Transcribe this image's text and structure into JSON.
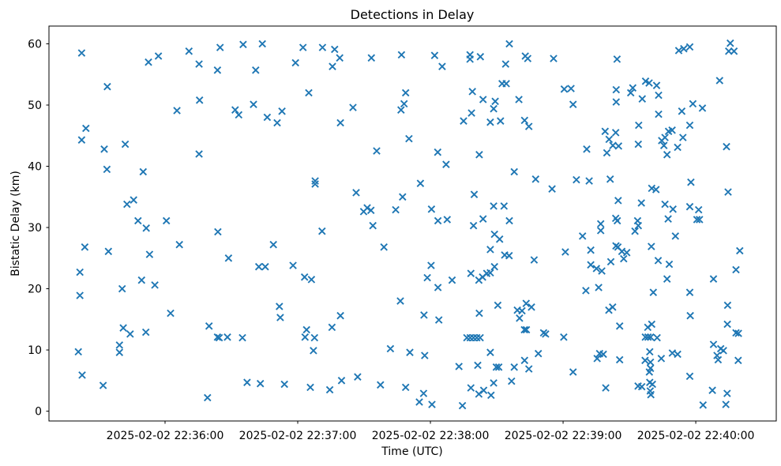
{
  "chart_data": {
    "type": "scatter",
    "title": "Detections in Delay",
    "xlabel": "Time (UTC)",
    "ylabel": "Bistatic Delay (km)",
    "marker": "x",
    "marker_color": "#1f77b4",
    "axis_color": "#000000",
    "background_color": "#ffffff",
    "grid": false,
    "legend": null,
    "x_unit": "seconds after 2025-02-02 22:35:00 UTC",
    "xlim": [
      7.5,
      336.4
    ],
    "ylim": [
      -1.6,
      62.9
    ],
    "x_ticks": [
      {
        "t": 60,
        "label": "2025-02-02 22:36:00"
      },
      {
        "t": 120,
        "label": "2025-02-02 22:37:00"
      },
      {
        "t": 180,
        "label": "2025-02-02 22:38:00"
      },
      {
        "t": 240,
        "label": "2025-02-02 22:39:00"
      },
      {
        "t": 300,
        "label": "2025-02-02 22:40:00"
      }
    ],
    "y_ticks": [
      0,
      10,
      20,
      30,
      40,
      50,
      60
    ],
    "points": [
      [
        22.3,
        58.5
      ],
      [
        52.5,
        57.0
      ],
      [
        57.0,
        58.0
      ],
      [
        70.8,
        58.8
      ],
      [
        84.9,
        59.4
      ],
      [
        75.4,
        56.7
      ],
      [
        83.7,
        55.7
      ],
      [
        33.9,
        53.0
      ],
      [
        75.6,
        50.8
      ],
      [
        65.4,
        49.1
      ],
      [
        24.2,
        46.2
      ],
      [
        22.3,
        44.3
      ],
      [
        42.0,
        43.6
      ],
      [
        32.5,
        42.8
      ],
      [
        75.4,
        42.0
      ],
      [
        95.3,
        59.9
      ],
      [
        104.0,
        60.0
      ],
      [
        122.4,
        59.4
      ],
      [
        131.2,
        59.4
      ],
      [
        136.7,
        59.1
      ],
      [
        139.0,
        57.7
      ],
      [
        153.3,
        57.7
      ],
      [
        166.9,
        58.2
      ],
      [
        119.0,
        56.9
      ],
      [
        135.7,
        56.3
      ],
      [
        101.0,
        55.7
      ],
      [
        125.0,
        52.0
      ],
      [
        100.0,
        50.1
      ],
      [
        91.7,
        49.2
      ],
      [
        93.3,
        48.4
      ],
      [
        112.9,
        49.0
      ],
      [
        106.2,
        48.0
      ],
      [
        110.7,
        47.1
      ],
      [
        145.0,
        49.6
      ],
      [
        139.3,
        47.1
      ],
      [
        168.8,
        52.0
      ],
      [
        168.1,
        50.2
      ],
      [
        166.7,
        49.2
      ],
      [
        170.3,
        44.5
      ],
      [
        155.7,
        42.5
      ],
      [
        215.7,
        60.0
      ],
      [
        181.9,
        58.1
      ],
      [
        197.9,
        58.2
      ],
      [
        197.9,
        57.5
      ],
      [
        202.6,
        57.9
      ],
      [
        222.9,
        58.0
      ],
      [
        224.0,
        57.6
      ],
      [
        235.7,
        57.6
      ],
      [
        185.3,
        56.3
      ],
      [
        214.0,
        56.7
      ],
      [
        212.4,
        53.5
      ],
      [
        214.3,
        53.5
      ],
      [
        199.0,
        52.2
      ],
      [
        240.5,
        52.6
      ],
      [
        243.6,
        52.7
      ],
      [
        203.8,
        50.9
      ],
      [
        209.3,
        50.6
      ],
      [
        220.0,
        50.9
      ],
      [
        244.5,
        50.1
      ],
      [
        208.6,
        49.4
      ],
      [
        198.6,
        48.7
      ],
      [
        195.0,
        47.4
      ],
      [
        207.1,
        47.2
      ],
      [
        211.7,
        47.4
      ],
      [
        222.6,
        47.5
      ],
      [
        224.5,
        46.5
      ],
      [
        183.3,
        42.3
      ],
      [
        202.1,
        41.9
      ],
      [
        250.7,
        42.8
      ],
      [
        292.3,
        58.9
      ],
      [
        294.6,
        59.2
      ],
      [
        297.3,
        59.5
      ],
      [
        315.6,
        60.1
      ],
      [
        314.9,
        58.8
      ],
      [
        317.3,
        58.8
      ],
      [
        264.4,
        57.5
      ],
      [
        310.8,
        54.0
      ],
      [
        277.3,
        53.9
      ],
      [
        278.9,
        53.6
      ],
      [
        282.3,
        53.2
      ],
      [
        271.5,
        52.8
      ],
      [
        270.6,
        52.0
      ],
      [
        264.0,
        52.5
      ],
      [
        264.0,
        50.5
      ],
      [
        275.8,
        51.0
      ],
      [
        283.2,
        51.6
      ],
      [
        298.7,
        50.2
      ],
      [
        293.7,
        49.0
      ],
      [
        303.0,
        49.5
      ],
      [
        283.2,
        48.5
      ],
      [
        274.2,
        46.7
      ],
      [
        297.3,
        46.7
      ],
      [
        259.0,
        45.7
      ],
      [
        263.8,
        45.5
      ],
      [
        260.8,
        44.4
      ],
      [
        262.5,
        43.4
      ],
      [
        265.1,
        43.3
      ],
      [
        259.8,
        42.2
      ],
      [
        274.0,
        43.6
      ],
      [
        287.7,
        45.7
      ],
      [
        289.3,
        45.9
      ],
      [
        286.1,
        44.7
      ],
      [
        284.6,
        44.2
      ],
      [
        285.6,
        43.4
      ],
      [
        294.2,
        44.7
      ],
      [
        291.8,
        43.1
      ],
      [
        313.9,
        43.2
      ],
      [
        287.0,
        41.9
      ],
      [
        33.7,
        39.5
      ],
      [
        50.1,
        39.1
      ],
      [
        45.8,
        34.5
      ],
      [
        42.8,
        33.8
      ],
      [
        47.8,
        31.1
      ],
      [
        51.5,
        29.9
      ],
      [
        60.6,
        31.1
      ],
      [
        83.9,
        29.3
      ],
      [
        23.7,
        26.8
      ],
      [
        34.4,
        26.1
      ],
      [
        53.0,
        25.6
      ],
      [
        66.5,
        27.2
      ],
      [
        21.5,
        22.7
      ],
      [
        49.4,
        21.4
      ],
      [
        55.4,
        20.6
      ],
      [
        40.6,
        20.0
      ],
      [
        127.9,
        37.6
      ],
      [
        127.9,
        37.1
      ],
      [
        146.4,
        35.7
      ],
      [
        167.4,
        35.0
      ],
      [
        149.8,
        32.6
      ],
      [
        151.4,
        33.2
      ],
      [
        153.1,
        32.8
      ],
      [
        164.3,
        32.9
      ],
      [
        154.0,
        30.3
      ],
      [
        131.0,
        29.4
      ],
      [
        109.0,
        27.2
      ],
      [
        159.0,
        26.8
      ],
      [
        88.7,
        25.0
      ],
      [
        102.4,
        23.6
      ],
      [
        105.3,
        23.6
      ],
      [
        117.9,
        23.8
      ],
      [
        123.1,
        21.9
      ],
      [
        126.2,
        21.5
      ],
      [
        187.1,
        40.3
      ],
      [
        217.9,
        39.1
      ],
      [
        175.5,
        37.2
      ],
      [
        227.6,
        37.9
      ],
      [
        246.0,
        37.8
      ],
      [
        235.0,
        36.3
      ],
      [
        199.8,
        35.4
      ],
      [
        208.6,
        33.5
      ],
      [
        213.3,
        33.5
      ],
      [
        180.5,
        33.0
      ],
      [
        183.4,
        31.1
      ],
      [
        187.6,
        31.3
      ],
      [
        203.8,
        31.4
      ],
      [
        199.5,
        30.3
      ],
      [
        215.7,
        31.1
      ],
      [
        209.0,
        28.9
      ],
      [
        211.3,
        28.1
      ],
      [
        207.1,
        26.4
      ],
      [
        213.6,
        25.5
      ],
      [
        215.6,
        25.4
      ],
      [
        226.9,
        24.7
      ],
      [
        241.0,
        26.0
      ],
      [
        248.8,
        28.6
      ],
      [
        180.3,
        23.8
      ],
      [
        178.6,
        21.8
      ],
      [
        189.8,
        21.4
      ],
      [
        198.3,
        22.5
      ],
      [
        201.9,
        21.4
      ],
      [
        203.6,
        21.9
      ],
      [
        205.5,
        22.5
      ],
      [
        207.1,
        22.6
      ],
      [
        209.0,
        23.6
      ],
      [
        183.4,
        20.2
      ],
      [
        251.8,
        37.6
      ],
      [
        261.3,
        37.9
      ],
      [
        297.8,
        37.4
      ],
      [
        280.1,
        36.4
      ],
      [
        282.0,
        36.2
      ],
      [
        314.6,
        35.8
      ],
      [
        264.9,
        34.4
      ],
      [
        275.4,
        34.0
      ],
      [
        286.1,
        33.8
      ],
      [
        289.7,
        33.0
      ],
      [
        297.3,
        33.4
      ],
      [
        301.3,
        32.9
      ],
      [
        287.5,
        31.4
      ],
      [
        300.5,
        31.3
      ],
      [
        301.7,
        31.3
      ],
      [
        257.0,
        30.6
      ],
      [
        263.8,
        31.5
      ],
      [
        264.5,
        31.1
      ],
      [
        257.0,
        29.5
      ],
      [
        273.7,
        31.1
      ],
      [
        274.0,
        30.3
      ],
      [
        272.5,
        29.4
      ],
      [
        290.8,
        28.6
      ],
      [
        252.5,
        26.3
      ],
      [
        263.9,
        27.0
      ],
      [
        264.8,
        26.8
      ],
      [
        266.6,
        26.1
      ],
      [
        268.8,
        25.9
      ],
      [
        267.4,
        24.9
      ],
      [
        261.6,
        24.4
      ],
      [
        279.9,
        26.9
      ],
      [
        283.0,
        24.6
      ],
      [
        288.0,
        24.0
      ],
      [
        252.5,
        23.9
      ],
      [
        255.1,
        23.3
      ],
      [
        257.5,
        22.9
      ],
      [
        318.2,
        23.1
      ],
      [
        319.9,
        26.2
      ],
      [
        287.0,
        21.6
      ],
      [
        308.0,
        21.6
      ],
      [
        256.1,
        20.2
      ],
      [
        21.5,
        18.9
      ],
      [
        62.5,
        16.0
      ],
      [
        41.1,
        13.6
      ],
      [
        44.2,
        12.6
      ],
      [
        51.3,
        12.9
      ],
      [
        79.9,
        13.9
      ],
      [
        83.7,
        12.1
      ],
      [
        84.5,
        12.0
      ],
      [
        88.2,
        12.1
      ],
      [
        39.4,
        10.8
      ],
      [
        39.4,
        9.6
      ],
      [
        20.8,
        9.7
      ],
      [
        22.5,
        5.9
      ],
      [
        32.0,
        4.2
      ],
      [
        79.2,
        2.2
      ],
      [
        166.4,
        18.0
      ],
      [
        111.7,
        17.1
      ],
      [
        112.1,
        15.3
      ],
      [
        139.3,
        15.6
      ],
      [
        135.5,
        13.7
      ],
      [
        124.0,
        13.3
      ],
      [
        123.3,
        12.1
      ],
      [
        127.6,
        12.0
      ],
      [
        95.0,
        12.0
      ],
      [
        127.1,
        9.9
      ],
      [
        161.9,
        10.2
      ],
      [
        97.1,
        4.7
      ],
      [
        103.1,
        4.5
      ],
      [
        114.0,
        4.4
      ],
      [
        125.7,
        3.9
      ],
      [
        134.5,
        3.5
      ],
      [
        139.8,
        5.0
      ],
      [
        147.1,
        5.6
      ],
      [
        157.4,
        4.3
      ],
      [
        168.8,
        3.9
      ],
      [
        250.3,
        19.7
      ],
      [
        223.3,
        17.6
      ],
      [
        225.7,
        17.0
      ],
      [
        219.3,
        16.5
      ],
      [
        221.4,
        16.4
      ],
      [
        220.3,
        15.2
      ],
      [
        210.5,
        17.3
      ],
      [
        177.1,
        15.7
      ],
      [
        202.1,
        16.0
      ],
      [
        183.8,
        14.9
      ],
      [
        222.5,
        13.3
      ],
      [
        223.4,
        13.3
      ],
      [
        231.2,
        12.8
      ],
      [
        232.1,
        12.6
      ],
      [
        240.3,
        12.1
      ],
      [
        196.5,
        12.0
      ],
      [
        198.0,
        12.0
      ],
      [
        199.5,
        12.0
      ],
      [
        201.0,
        12.0
      ],
      [
        202.5,
        12.0
      ],
      [
        170.7,
        9.6
      ],
      [
        177.4,
        9.1
      ],
      [
        207.1,
        9.6
      ],
      [
        228.8,
        9.4
      ],
      [
        222.6,
        8.3
      ],
      [
        192.9,
        7.3
      ],
      [
        201.4,
        7.5
      ],
      [
        209.8,
        7.2
      ],
      [
        210.9,
        7.2
      ],
      [
        217.9,
        7.2
      ],
      [
        224.5,
        6.9
      ],
      [
        244.5,
        6.4
      ],
      [
        216.7,
        4.9
      ],
      [
        208.6,
        4.6
      ],
      [
        198.3,
        3.8
      ],
      [
        201.9,
        2.8
      ],
      [
        204.1,
        3.4
      ],
      [
        207.4,
        2.6
      ],
      [
        176.9,
        2.9
      ],
      [
        175.0,
        1.5
      ],
      [
        180.7,
        1.1
      ],
      [
        194.5,
        0.9
      ],
      [
        280.8,
        19.4
      ],
      [
        297.3,
        19.4
      ],
      [
        260.7,
        16.5
      ],
      [
        262.4,
        17.0
      ],
      [
        314.4,
        17.3
      ],
      [
        297.5,
        15.6
      ],
      [
        265.6,
        13.9
      ],
      [
        278.3,
        13.7
      ],
      [
        280.1,
        14.2
      ],
      [
        314.3,
        14.2
      ],
      [
        318.2,
        12.8
      ],
      [
        319.3,
        12.7
      ],
      [
        277.2,
        12.1
      ],
      [
        278.4,
        12.1
      ],
      [
        279.6,
        12.1
      ],
      [
        282.5,
        12.0
      ],
      [
        308.0,
        10.9
      ],
      [
        311.3,
        10.2
      ],
      [
        312.5,
        9.9
      ],
      [
        309.6,
        9.1
      ],
      [
        310.1,
        8.4
      ],
      [
        256.5,
        9.4
      ],
      [
        258.2,
        9.3
      ],
      [
        255.4,
        8.6
      ],
      [
        265.6,
        8.4
      ],
      [
        279.2,
        9.7
      ],
      [
        284.4,
        8.6
      ],
      [
        289.4,
        9.5
      ],
      [
        291.8,
        9.3
      ],
      [
        319.2,
        8.3
      ],
      [
        277.1,
        8.3
      ],
      [
        279.5,
        8.0
      ],
      [
        279.5,
        7.0
      ],
      [
        279.0,
        6.4
      ],
      [
        297.3,
        5.7
      ],
      [
        259.3,
        3.8
      ],
      [
        273.9,
        4.1
      ],
      [
        275.6,
        4.0
      ],
      [
        279.2,
        4.7
      ],
      [
        280.4,
        4.4
      ],
      [
        279.4,
        3.3
      ],
      [
        279.7,
        2.7
      ],
      [
        307.5,
        3.4
      ],
      [
        314.2,
        2.9
      ],
      [
        303.3,
        1.0
      ],
      [
        313.6,
        1.1
      ]
    ]
  }
}
